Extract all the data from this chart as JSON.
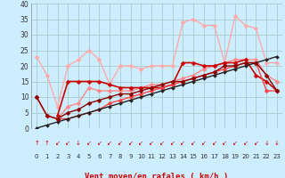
{
  "background_color": "#cceeff",
  "grid_color": "#aacccc",
  "xlim": [
    -0.5,
    23.5
  ],
  "ylim": [
    0,
    40
  ],
  "yticks": [
    0,
    5,
    10,
    15,
    20,
    25,
    30,
    35,
    40
  ],
  "xticks": [
    0,
    1,
    2,
    3,
    4,
    5,
    6,
    7,
    8,
    9,
    10,
    11,
    12,
    13,
    14,
    15,
    16,
    17,
    18,
    19,
    20,
    21,
    22,
    23
  ],
  "series": [
    {
      "comment": "light pink - rafales top line, peaks around 35-36",
      "x": [
        0,
        1,
        2,
        3,
        4,
        5,
        6,
        7,
        8,
        9,
        10,
        11,
        12,
        13,
        14,
        15,
        16,
        17,
        18,
        19,
        20,
        21,
        22,
        23
      ],
      "y": [
        23,
        17,
        7,
        20,
        22,
        25,
        22,
        14,
        20,
        20,
        19,
        20,
        20,
        20,
        34,
        35,
        33,
        33,
        21,
        36,
        33,
        32,
        21,
        21
      ],
      "color": "#ffaaaa",
      "marker": "D",
      "markersize": 2.5,
      "linewidth": 1.0
    },
    {
      "comment": "medium pink - second rafales line",
      "x": [
        0,
        1,
        2,
        3,
        4,
        5,
        6,
        7,
        8,
        9,
        10,
        11,
        12,
        13,
        14,
        15,
        16,
        17,
        18,
        19,
        20,
        21,
        22,
        23
      ],
      "y": [
        10,
        4,
        3,
        7,
        8,
        13,
        12,
        12,
        12,
        12,
        13,
        14,
        14,
        15,
        16,
        17,
        19,
        20,
        21,
        22,
        22,
        22,
        17,
        15
      ],
      "color": "#ff8888",
      "marker": "D",
      "markersize": 2.5,
      "linewidth": 1.0
    },
    {
      "comment": "dark red flat line around 13-14 then climbs",
      "x": [
        2,
        3,
        4,
        5,
        6,
        7,
        8,
        9,
        10,
        11,
        12,
        13,
        14,
        15,
        16,
        17,
        18,
        19,
        20,
        21,
        22,
        23
      ],
      "y": [
        4,
        15,
        15,
        15,
        15,
        14,
        13,
        13,
        13,
        13,
        13,
        14,
        21,
        21,
        20,
        20,
        21,
        21,
        22,
        17,
        15,
        12
      ],
      "color": "#cc0000",
      "marker": "D",
      "markersize": 2.5,
      "linewidth": 1.2
    },
    {
      "comment": "red line diagonal from bottom left",
      "x": [
        0,
        1,
        2,
        3,
        4,
        5,
        6,
        7,
        8,
        9,
        10,
        11,
        12,
        13,
        14,
        15,
        16,
        17,
        18,
        19,
        20,
        21,
        22,
        23
      ],
      "y": [
        10,
        4,
        3,
        3,
        4,
        5,
        6,
        8,
        9,
        10,
        11,
        12,
        13,
        14,
        15,
        16,
        17,
        18,
        19,
        20,
        21,
        21,
        12,
        12
      ],
      "color": "#ff4444",
      "marker": "D",
      "markersize": 2.5,
      "linewidth": 1.0
    },
    {
      "comment": "dark red/black diagonal line bottom",
      "x": [
        0,
        1,
        2,
        3,
        4,
        5,
        6,
        7,
        8,
        9,
        10,
        11,
        12,
        13,
        14,
        15,
        16,
        17,
        18,
        19,
        20,
        21,
        22,
        23
      ],
      "y": [
        0,
        1,
        2,
        3,
        4,
        5,
        6,
        7,
        8,
        9,
        10,
        11,
        12,
        13,
        14,
        15,
        16,
        17,
        18,
        19,
        20,
        21,
        22,
        23
      ],
      "color": "#222222",
      "marker": "D",
      "markersize": 2.0,
      "linewidth": 1.0
    },
    {
      "comment": "medium dark red second diagonal",
      "x": [
        0,
        1,
        2,
        3,
        4,
        5,
        6,
        7,
        8,
        9,
        10,
        11,
        12,
        13,
        14,
        15,
        16,
        17,
        18,
        19,
        20,
        21,
        22,
        23
      ],
      "y": [
        10,
        4,
        3,
        5,
        6,
        8,
        9,
        10,
        11,
        11,
        12,
        13,
        14,
        15,
        15,
        16,
        17,
        18,
        20,
        20,
        21,
        21,
        17,
        12
      ],
      "color": "#880000",
      "marker": "D",
      "markersize": 2.5,
      "linewidth": 1.0
    }
  ],
  "arrow_symbols": [
    "↑",
    "↑",
    "↙",
    "↙",
    "↓",
    "↙",
    "↙",
    "↙",
    "↙",
    "↙",
    "↙",
    "↙",
    "↙",
    "↙",
    "↙",
    "↙",
    "↙",
    "↙",
    "↙",
    "↙",
    "↙",
    "↙",
    "↓",
    "↓"
  ],
  "xlabel": "Vent moyen/en rafales ( km/h )",
  "xlabel_color": "#cc0000",
  "arrow_color": "#cc0000"
}
